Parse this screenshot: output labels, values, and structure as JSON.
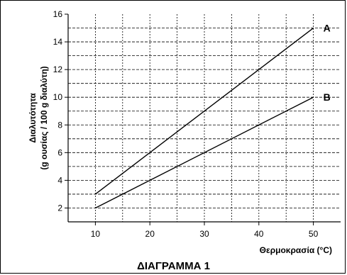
{
  "chart_data": {
    "type": "line",
    "title": "ΔΙΑΓΡΑΜΜΑ 1",
    "xlabel": "Θερμοκρασία (°C)",
    "ylabel_line1": "Διαλυτότητα",
    "ylabel_line2": "(g ουσίας / 100 g διαλύτη)",
    "xlim": [
      5,
      55
    ],
    "ylim": [
      1,
      16
    ],
    "x_ticks": [
      10,
      20,
      30,
      40,
      50
    ],
    "y_ticks": [
      2,
      4,
      6,
      8,
      10,
      12,
      14,
      16
    ],
    "grid": true,
    "series": [
      {
        "name": "A",
        "x": [
          10,
          50
        ],
        "values": [
          3,
          15
        ]
      },
      {
        "name": "B",
        "x": [
          10,
          50
        ],
        "values": [
          2,
          10
        ]
      }
    ]
  }
}
